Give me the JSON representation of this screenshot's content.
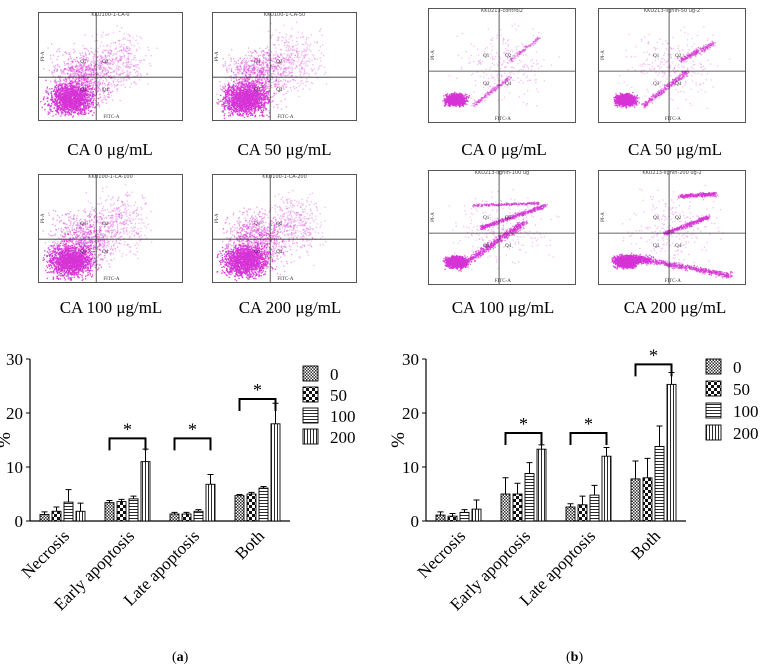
{
  "panels": [
    {
      "id": "a",
      "label": "a",
      "flow_plots": [
        {
          "title": "KKU100-1-CA-0",
          "caption": "CA 0 μg/mL",
          "x_axis": "FITC-A",
          "y_axis": "PI-A",
          "quadrants": [
            "Q1",
            "Q2",
            "Q3",
            "Q4"
          ]
        },
        {
          "title": "KKU100-1-CA-50",
          "caption": "CA 50 μg/mL",
          "x_axis": "FITC-A",
          "y_axis": "PI-A",
          "quadrants": [
            "Q1",
            "Q2",
            "Q3",
            "Q4"
          ]
        },
        {
          "title": "KKU100-1-CA-100",
          "caption": "CA 100 μg/mL",
          "x_axis": "FITC-A",
          "y_axis": "PI-A",
          "quadrants": [
            "Q1",
            "Q2",
            "Q3",
            "Q4"
          ]
        },
        {
          "title": "KKU100-1-CA-200",
          "caption": "CA 200 μg/mL",
          "x_axis": "FITC-A",
          "y_axis": "PI-A",
          "quadrants": [
            "Q1",
            "Q2",
            "Q3",
            "Q4"
          ]
        }
      ]
    },
    {
      "id": "b",
      "label": "b",
      "flow_plots": [
        {
          "title": "KKU213-control2",
          "caption": "CA 0 μg/mL",
          "x_axis": "FITC-A",
          "y_axis": "PI-A",
          "quadrants": [
            "Q1",
            "Q2",
            "Q3",
            "Q4"
          ]
        },
        {
          "title": "KKU213-lignin-50 ug-2",
          "caption": "CA 50 μg/mL",
          "x_axis": "FITC-A",
          "y_axis": "PI-A",
          "quadrants": [
            "Q1",
            "Q2",
            "Q3",
            "Q4"
          ]
        },
        {
          "title": "KKU213-lignin-100 ug",
          "caption": "CA 100 μg/mL",
          "x_axis": "FITC-A",
          "y_axis": "PI-A",
          "quadrants": [
            "Q1",
            "Q2",
            "Q3",
            "Q4"
          ]
        },
        {
          "title": "KKU213-lignin-200 ug-2",
          "caption": "CA 200 μg/mL",
          "x_axis": "FITC-A",
          "y_axis": "PI-A",
          "quadrants": [
            "Q1",
            "Q2",
            "Q3",
            "Q4"
          ]
        }
      ]
    }
  ],
  "chart_data": [
    {
      "type": "bar",
      "panel": "a",
      "title": "",
      "xlabel": "",
      "ylabel": "%",
      "ylim": [
        0,
        30
      ],
      "yticks": [
        0,
        10,
        20,
        30
      ],
      "categories": [
        "Necrosis",
        "Early apoptosis",
        "Late apoptosis",
        "Both"
      ],
      "series": [
        {
          "name": "0",
          "values": [
            1.2,
            3.4,
            1.3,
            4.7
          ],
          "errors": [
            0.5,
            0.4,
            0.3,
            0.2
          ]
        },
        {
          "name": "50",
          "values": [
            1.8,
            3.6,
            1.3,
            5.0
          ],
          "errors": [
            0.8,
            0.4,
            0.3,
            0.3
          ]
        },
        {
          "name": "100",
          "values": [
            3.5,
            4.1,
            1.8,
            6.1
          ],
          "errors": [
            2.3,
            0.5,
            0.3,
            0.3
          ]
        },
        {
          "name": "200",
          "values": [
            1.8,
            11.0,
            6.8,
            18.0
          ],
          "errors": [
            1.5,
            2.3,
            1.8,
            3.8
          ]
        }
      ],
      "legend": "right",
      "significance": [
        {
          "category": "Early apoptosis",
          "label": "*"
        },
        {
          "category": "Late apoptosis",
          "label": "*"
        },
        {
          "category": "Both",
          "label": "*"
        }
      ],
      "bracket_levels": [
        15.3,
        15.3,
        22.6
      ]
    },
    {
      "type": "bar",
      "panel": "b",
      "title": "",
      "xlabel": "",
      "ylabel": "%",
      "ylim": [
        0,
        30
      ],
      "yticks": [
        0,
        10,
        20,
        30
      ],
      "categories": [
        "Necrosis",
        "Early apoptosis",
        "Late apoptosis",
        "Both"
      ],
      "series": [
        {
          "name": "0",
          "values": [
            1.1,
            5.0,
            2.6,
            7.8
          ],
          "errors": [
            0.6,
            3.0,
            0.6,
            3.3
          ]
        },
        {
          "name": "50",
          "values": [
            0.9,
            5.0,
            3.0,
            8.0
          ],
          "errors": [
            0.5,
            2.0,
            1.6,
            3.6
          ]
        },
        {
          "name": "100",
          "values": [
            1.6,
            8.8,
            4.8,
            13.8
          ],
          "errors": [
            0.5,
            2.0,
            1.8,
            3.8
          ]
        },
        {
          "name": "200",
          "values": [
            2.2,
            13.3,
            12.0,
            25.3
          ],
          "errors": [
            1.7,
            0.8,
            1.6,
            2.2
          ]
        }
      ],
      "legend": "right",
      "significance": [
        {
          "category": "Early apoptosis",
          "label": "*"
        },
        {
          "category": "Late apoptosis",
          "label": "*"
        },
        {
          "category": "Both",
          "label": "*"
        }
      ],
      "bracket_levels": [
        16.3,
        16.3,
        29.0
      ]
    }
  ]
}
